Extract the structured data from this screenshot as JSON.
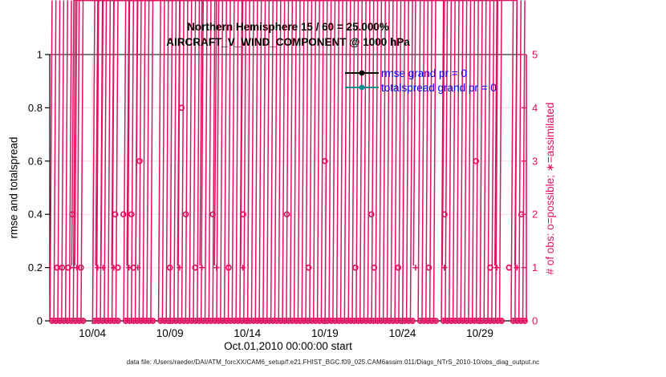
{
  "header": {
    "title_line1": "Northern Hemisphere 15 / 60 = 25.000%",
    "title_line2": "AIRCRAFT_V_WIND_COMPONENT @ 1000 hPa"
  },
  "legend": {
    "text_color": "#0000ee",
    "entries": [
      {
        "label": "rmse grand pr = 0",
        "color": "#000000"
      },
      {
        "label": "totalspread grand pr = 0",
        "color": "#0e8f8a"
      }
    ]
  },
  "axes": {
    "left": {
      "label": "rmse and totalspread",
      "ticks": [
        "0",
        "0.2",
        "0.4",
        "0.6",
        "0.8",
        "1"
      ],
      "range": [
        0,
        1
      ],
      "color": "#000000"
    },
    "right": {
      "label": "# of obs: o=possible; ∗=assimilated",
      "ticks": [
        "0",
        "1",
        "2",
        "3",
        "4",
        "5"
      ],
      "range": [
        0,
        5
      ],
      "color": "#e01160"
    },
    "x": {
      "label": "Oct.01,2010 00:00:00 start",
      "tick_labels": [
        "10/04",
        "10/09",
        "10/14",
        "10/19",
        "10/24",
        "10/29"
      ],
      "tick_days": [
        3,
        8,
        13,
        18,
        23,
        28
      ],
      "range_days": [
        0.25,
        31
      ]
    }
  },
  "footer": {
    "text": "data file: /Users/raeder/DAI/ATM_forcXX/CAM6_setup/f.e21.FHIST_BGC.f09_025.CAM6assim.011/Diags_NTrS_2010-10/obs_diag_output.nc"
  },
  "chart_data": {
    "type": "scatter",
    "title": "Northern Hemisphere 15 / 60 = 25.000% — AIRCRAFT_V_WIND_COMPONENT @ 1000 hPa",
    "xlabel": "Oct.01,2010 00:00:00 start",
    "ylabel_left": "rmse and totalspread",
    "ylabel_right": "# of obs: o=possible; ∗=assimilated",
    "x_units": "days since Oct 01, 2010 00:00",
    "ylim_left": [
      0,
      1
    ],
    "ylim_right": [
      0,
      5
    ],
    "grid": {
      "h_color": "#f8dbe6",
      "v_color": "#d8d8d8",
      "on": true
    },
    "marker_color": "#e01160",
    "rmse_grand": 0,
    "totalspread_grand": 0,
    "series": [
      {
        "name": "possible",
        "marker": "o",
        "axis": "right",
        "points": [
          [
            0.73,
            1
          ],
          [
            1.05,
            1
          ],
          [
            1.45,
            1
          ],
          [
            2.26,
            1
          ],
          [
            4.64,
            1
          ],
          [
            5.64,
            1
          ],
          [
            8.0,
            1
          ],
          [
            9.63,
            1
          ],
          [
            11.79,
            1
          ],
          [
            16.95,
            1
          ],
          [
            19.97,
            1
          ],
          [
            21.18,
            1
          ],
          [
            22.73,
            1
          ],
          [
            24.71,
            1
          ],
          [
            28.67,
            1
          ],
          [
            29.88,
            1
          ],
          [
            1.7,
            2
          ],
          [
            4.47,
            2
          ],
          [
            5.0,
            2
          ],
          [
            5.52,
            2
          ],
          [
            9.03,
            2
          ],
          [
            10.77,
            2
          ],
          [
            12.73,
            2
          ],
          [
            15.55,
            2
          ],
          [
            21.0,
            2
          ],
          [
            25.72,
            2
          ],
          [
            30.68,
            2
          ],
          [
            6.05,
            3
          ],
          [
            18.0,
            3
          ],
          [
            27.75,
            3
          ],
          [
            8.75,
            4
          ]
        ]
      },
      {
        "name": "assimilated",
        "marker": "*",
        "axis": "right",
        "points": [
          [
            1.8,
            1
          ],
          [
            2.0,
            1
          ],
          [
            3.35,
            1
          ],
          [
            3.69,
            1
          ],
          [
            4.38,
            1
          ],
          [
            5.36,
            1
          ],
          [
            5.93,
            1
          ],
          [
            8.63,
            1
          ],
          [
            10.07,
            1
          ],
          [
            11.01,
            1
          ],
          [
            12.7,
            1
          ],
          [
            23.85,
            1
          ],
          [
            25.71,
            1
          ],
          [
            29.1,
            1
          ],
          [
            30.39,
            1
          ]
        ]
      },
      {
        "name": "zero_band",
        "marker": "o+*",
        "axis": "right",
        "value": 0,
        "band": {
          "start": 0.4,
          "end": 30.9,
          "step": 0.25,
          "gaps": [
            [
              2.4,
              2.95
            ],
            [
              4.7,
              5.15
            ],
            [
              7.0,
              7.35
            ],
            [
              23.85,
              24.15
            ],
            [
              25.3,
              25.6
            ],
            [
              29.6,
              29.95
            ]
          ]
        }
      }
    ]
  }
}
